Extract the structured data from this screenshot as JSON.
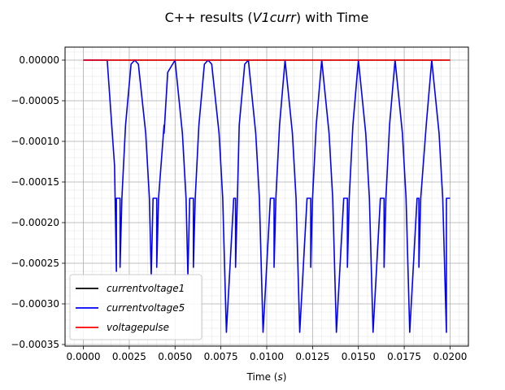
{
  "chart_data": {
    "type": "line",
    "title_prefix": "C++ results (",
    "title_var": "V1curr",
    "title_suffix": ") with Time",
    "xlabel_prefix": "Time (",
    "xlabel_var": "s",
    "xlabel_suffix": ")",
    "ylabel": "",
    "xlim": [
      -0.001,
      0.021
    ],
    "ylim": [
      -0.000352,
      1.6e-05
    ],
    "x_ticks": [
      0.0,
      0.0025,
      0.005,
      0.0075,
      0.01,
      0.0125,
      0.015,
      0.0175,
      0.02
    ],
    "x_tick_labels": [
      "0.0000",
      "0.0025",
      "0.0050",
      "0.0075",
      "0.0100",
      "0.0125",
      "0.0150",
      "0.0175",
      "0.0200"
    ],
    "y_ticks": [
      0.0,
      -5e-05,
      -0.0001,
      -0.00015,
      -0.0002,
      -0.00025,
      -0.0003,
      -0.00035
    ],
    "y_tick_labels": [
      "0.00000",
      "−0.00005",
      "−0.00010",
      "−0.00015",
      "−0.00020",
      "−0.00025",
      "−0.00030",
      "−0.00035"
    ],
    "grid": true,
    "minor_grid": true,
    "legend_position": "lower-left",
    "series": [
      {
        "name": "currentvoltage1",
        "color": "#000000",
        "x": [
          0.0,
          0.02
        ],
        "y": [
          0.0,
          0.0
        ]
      },
      {
        "name": "currentvoltage5",
        "color": "#0000ff",
        "x": [
          0.0,
          0.0013,
          0.0017,
          0.0018,
          0.0018,
          0.002,
          0.002,
          0.0021,
          0.0023,
          0.0026,
          0.0028,
          0.003,
          0.0034,
          0.0036,
          0.0037,
          0.0038,
          0.0038,
          0.004,
          0.004,
          0.0041,
          0.0044,
          0.0044,
          0.0046,
          0.005,
          0.0054,
          0.0056,
          0.0057,
          0.0058,
          0.0058,
          0.006,
          0.006,
          0.0061,
          0.0063,
          0.0066,
          0.0068,
          0.007,
          0.0074,
          0.0076,
          0.0078,
          0.0082,
          0.0082,
          0.0083,
          0.0083,
          0.0084,
          0.0085,
          0.0088,
          0.009,
          0.0094,
          0.0096,
          0.0098,
          0.0102,
          0.0102,
          0.0104,
          0.0104,
          0.0105,
          0.0107,
          0.011,
          0.0114,
          0.0116,
          0.0118,
          0.0122,
          0.0122,
          0.0124,
          0.0124,
          0.0125,
          0.0127,
          0.013,
          0.0134,
          0.0136,
          0.0138,
          0.0142,
          0.0142,
          0.0144,
          0.0144,
          0.0145,
          0.0147,
          0.015,
          0.0154,
          0.0156,
          0.0158,
          0.0162,
          0.0162,
          0.0164,
          0.0164,
          0.0165,
          0.0167,
          0.017,
          0.0174,
          0.0176,
          0.0178,
          0.0182,
          0.0182,
          0.0183,
          0.0183,
          0.0184,
          0.0187,
          0.019,
          0.0194,
          0.0196,
          0.0198,
          0.0198,
          0.02
        ],
        "y": [
          0.0,
          0.0,
          -0.00013,
          -0.00026,
          -0.00017,
          -0.00017,
          -0.000255,
          -0.00017,
          -8e-05,
          -5e-06,
          0.0,
          -5e-06,
          -9e-05,
          -0.00017,
          -0.000265,
          -0.00017,
          -0.00017,
          -0.00017,
          -0.000255,
          -0.00017,
          -8e-05,
          -9e-05,
          -1.5e-05,
          0.0,
          -9e-05,
          -0.00017,
          -0.000265,
          -0.00017,
          -0.00017,
          -0.00017,
          -0.000255,
          -0.00017,
          -8e-05,
          -5e-06,
          0.0,
          -5e-06,
          -9e-05,
          -0.00017,
          -0.000335,
          -0.00017,
          -0.00017,
          -0.00017,
          -0.000255,
          -0.00017,
          -8e-05,
          -5e-06,
          0.0,
          -9e-05,
          -0.00017,
          -0.000335,
          -0.00017,
          -0.00017,
          -0.00017,
          -0.000255,
          -0.00017,
          -8e-05,
          0.0,
          -9e-05,
          -0.00017,
          -0.000335,
          -0.00017,
          -0.00017,
          -0.00017,
          -0.000255,
          -0.00017,
          -8e-05,
          0.0,
          -9e-05,
          -0.00017,
          -0.000335,
          -0.00017,
          -0.00017,
          -0.00017,
          -0.000255,
          -0.00017,
          -8e-05,
          0.0,
          -9e-05,
          -0.00017,
          -0.000335,
          -0.00017,
          -0.00017,
          -0.00017,
          -0.000255,
          -0.00017,
          -8e-05,
          0.0,
          -9e-05,
          -0.00017,
          -0.000335,
          -0.00017,
          -0.00017,
          -0.00017,
          -0.000255,
          -0.00017,
          -8e-05,
          0.0,
          -9e-05,
          -0.00017,
          -0.000335,
          -0.00017,
          -0.00017
        ]
      },
      {
        "name": "voltagepulse",
        "color": "#ff0000",
        "x": [
          0.0,
          0.02
        ],
        "y": [
          0.0,
          0.0
        ]
      }
    ]
  }
}
